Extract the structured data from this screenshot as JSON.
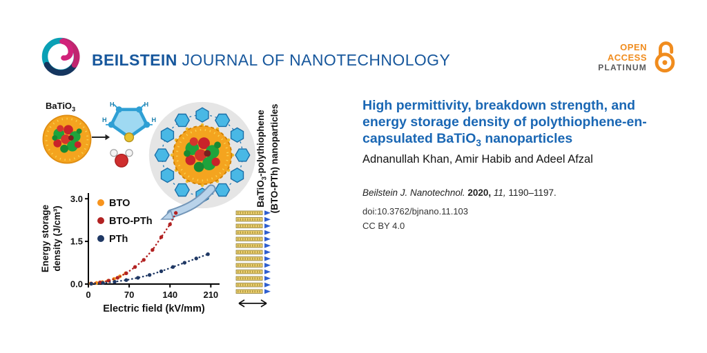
{
  "header": {
    "journal_bold": "BEILSTEIN",
    "journal_rest": " JOURNAL OF NANOTECHNOLOGY",
    "open_access_line1": "OPEN",
    "open_access_line2": "ACCESS",
    "open_access_line3": "PLATINUM",
    "brand_blue": "#17579c",
    "oa_orange": "#f08c1e"
  },
  "article": {
    "title_lines": [
      "High permittivity, breakdown strength, and",
      "energy storage density of polythiophene-en-"
    ],
    "title_line3_pre": "capsulated BaTiO",
    "title_line3_sub": "3",
    "title_line3_post": " nanoparticles",
    "title_color": "#1a67b4",
    "authors": "Adnanullah Khan, Amir Habib and Adeel Afzal",
    "citation_journal": "Beilstein J. Nanotechnol.",
    "citation_year": "2020,",
    "citation_volume": "11,",
    "citation_pages": "1190–1197.",
    "doi": "doi:10.3762/bjnano.11.103",
    "license": "CC BY 4.0"
  },
  "figure": {
    "reactant_label_pre": "BaTiO",
    "reactant_label_sub": "3",
    "product_label_line1_pre": "BaTiO",
    "product_label_line1_sub": "3",
    "product_label_line1_post": "-polythiophene",
    "product_label_line2": "(BTO-PTh) nanoparticles"
  },
  "chart_data": {
    "type": "scatter",
    "title": "",
    "xlabel": "Electric field (kV/mm)",
    "ylabel": "Energy storage density (J/cm³)",
    "ylabel_lines": [
      "Energy storage",
      "density (J/cm³)"
    ],
    "xlim": [
      0,
      225
    ],
    "ylim": [
      0,
      3.2
    ],
    "xticks": [
      0,
      70,
      140,
      210
    ],
    "yticks": [
      0,
      1.5,
      3
    ],
    "grid": false,
    "legend_position": "upper-left",
    "series": [
      {
        "name": "BTO",
        "color": "#f7941d",
        "points": [
          [
            4,
            0.02
          ],
          [
            14,
            0.04
          ],
          [
            24,
            0.07
          ],
          [
            34,
            0.12
          ],
          [
            44,
            0.18
          ],
          [
            54,
            0.27
          ],
          [
            64,
            0.38
          ]
        ]
      },
      {
        "name": "BTO-PTh",
        "color": "#b22222",
        "points": [
          [
            5,
            0.02
          ],
          [
            20,
            0.06
          ],
          [
            35,
            0.12
          ],
          [
            50,
            0.22
          ],
          [
            65,
            0.38
          ],
          [
            80,
            0.6
          ],
          [
            95,
            0.85
          ],
          [
            110,
            1.2
          ],
          [
            125,
            1.65
          ],
          [
            140,
            2.1
          ],
          [
            150,
            2.5
          ]
        ]
      },
      {
        "name": "PTh",
        "color": "#1f3864",
        "points": [
          [
            5,
            0.01
          ],
          [
            25,
            0.04
          ],
          [
            45,
            0.08
          ],
          [
            65,
            0.14
          ],
          [
            85,
            0.22
          ],
          [
            105,
            0.32
          ],
          [
            125,
            0.45
          ],
          [
            145,
            0.6
          ],
          [
            165,
            0.75
          ],
          [
            185,
            0.9
          ],
          [
            205,
            1.05
          ]
        ]
      }
    ]
  }
}
